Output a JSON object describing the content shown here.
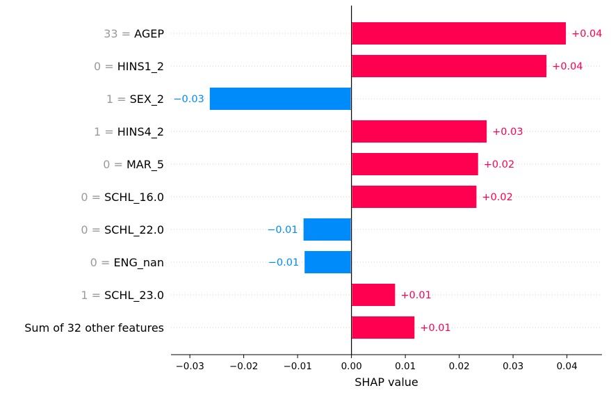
{
  "chart_data": {
    "type": "bar",
    "orientation": "horizontal",
    "xlabel": "SHAP value",
    "xlim": [
      -0.0335,
      0.0465
    ],
    "xticks": [
      -0.03,
      -0.02,
      -0.01,
      0.0,
      0.01,
      0.02,
      0.03,
      0.04
    ],
    "xtick_labels": [
      "−0.03",
      "−0.02",
      "−0.01",
      "0.00",
      "0.01",
      "0.02",
      "0.03",
      "0.04"
    ],
    "grid": "dotted horizontal row lines",
    "colors": {
      "positive": "#ff0051",
      "negative": "#008bfb"
    },
    "features": [
      {
        "value": "33",
        "name": "AGEP",
        "shap": 0.0398,
        "label": "+0.04"
      },
      {
        "value": "0",
        "name": "HINS1_2",
        "shap": 0.0362,
        "label": "+0.04"
      },
      {
        "value": "1",
        "name": "SEX_2",
        "shap": -0.0263,
        "label": "−0.03"
      },
      {
        "value": "1",
        "name": "HINS4_2",
        "shap": 0.0251,
        "label": "+0.03"
      },
      {
        "value": "0",
        "name": "MAR_5",
        "shap": 0.0235,
        "label": "+0.02"
      },
      {
        "value": "0",
        "name": "SCHL_16.0",
        "shap": 0.0232,
        "label": "+0.02"
      },
      {
        "value": "0",
        "name": "SCHL_22.0",
        "shap": -0.0089,
        "label": "−0.01"
      },
      {
        "value": "0",
        "name": "ENG_nan",
        "shap": -0.0087,
        "label": "−0.01"
      },
      {
        "value": "1",
        "name": "SCHL_23.0",
        "shap": 0.0081,
        "label": "+0.01"
      },
      {
        "value": "",
        "name": "Sum of 32 other features",
        "shap": 0.0117,
        "label": "+0.01"
      }
    ]
  }
}
